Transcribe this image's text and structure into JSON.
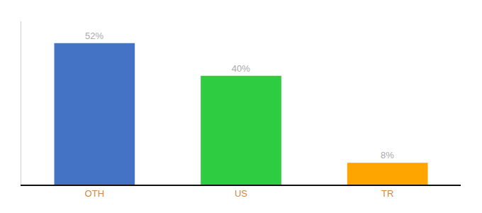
{
  "chart_data": {
    "type": "bar",
    "categories": [
      "OTH",
      "US",
      "TR"
    ],
    "values": [
      52,
      40,
      8
    ],
    "value_labels": [
      "52%",
      "40%",
      "8%"
    ],
    "colors": [
      "#4472C4",
      "#2ECC40",
      "#FFA500"
    ],
    "ylim": [
      0,
      60
    ],
    "data_labels": true,
    "tick_labels": "x",
    "grid": false
  }
}
